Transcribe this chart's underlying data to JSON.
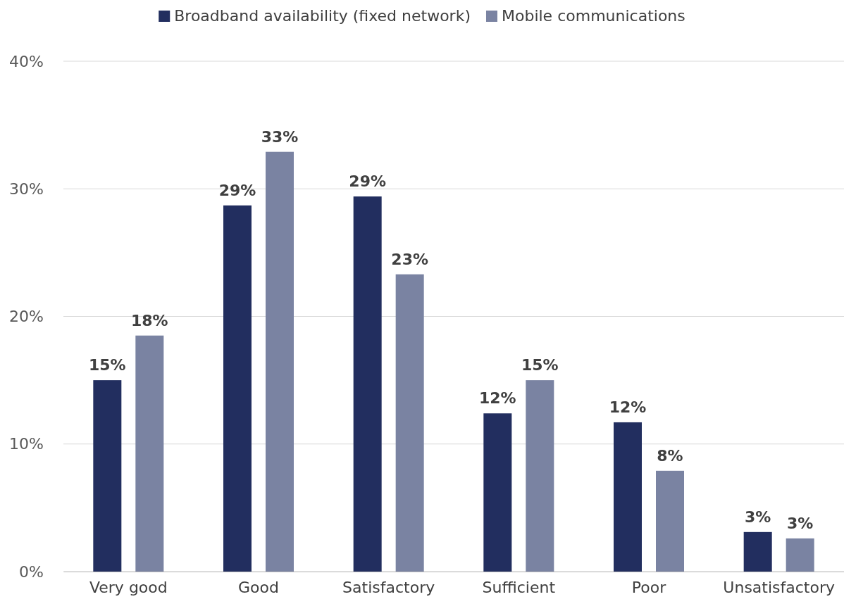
{
  "chart_data": {
    "type": "bar",
    "categories": [
      "Very good",
      "Good",
      "Satisfactory",
      "Sufficient",
      "Poor",
      "Unsatisfactory"
    ],
    "series": [
      {
        "name": "Broadband availability (fixed network)",
        "color": "#222e5f",
        "values": [
          15.0,
          28.7,
          29.4,
          12.4,
          11.7,
          3.1
        ],
        "value_labels": [
          "15%",
          "29%",
          "29%",
          "12%",
          "12%",
          "3%"
        ]
      },
      {
        "name": "Mobile communications",
        "color": "#7a83a2",
        "values": [
          18.5,
          32.9,
          23.3,
          15.0,
          7.9,
          2.6
        ],
        "value_labels": [
          "18%",
          "33%",
          "23%",
          "15%",
          "8%",
          "3%"
        ]
      }
    ],
    "ylim": [
      0,
      40
    ],
    "yticks": [
      {
        "value": 0,
        "label": "0%"
      },
      {
        "value": 10,
        "label": "10%"
      },
      {
        "value": 20,
        "label": "20%"
      },
      {
        "value": 30,
        "label": "30%"
      },
      {
        "value": 40,
        "label": "40%"
      }
    ],
    "grid": "y",
    "legend": "top"
  }
}
